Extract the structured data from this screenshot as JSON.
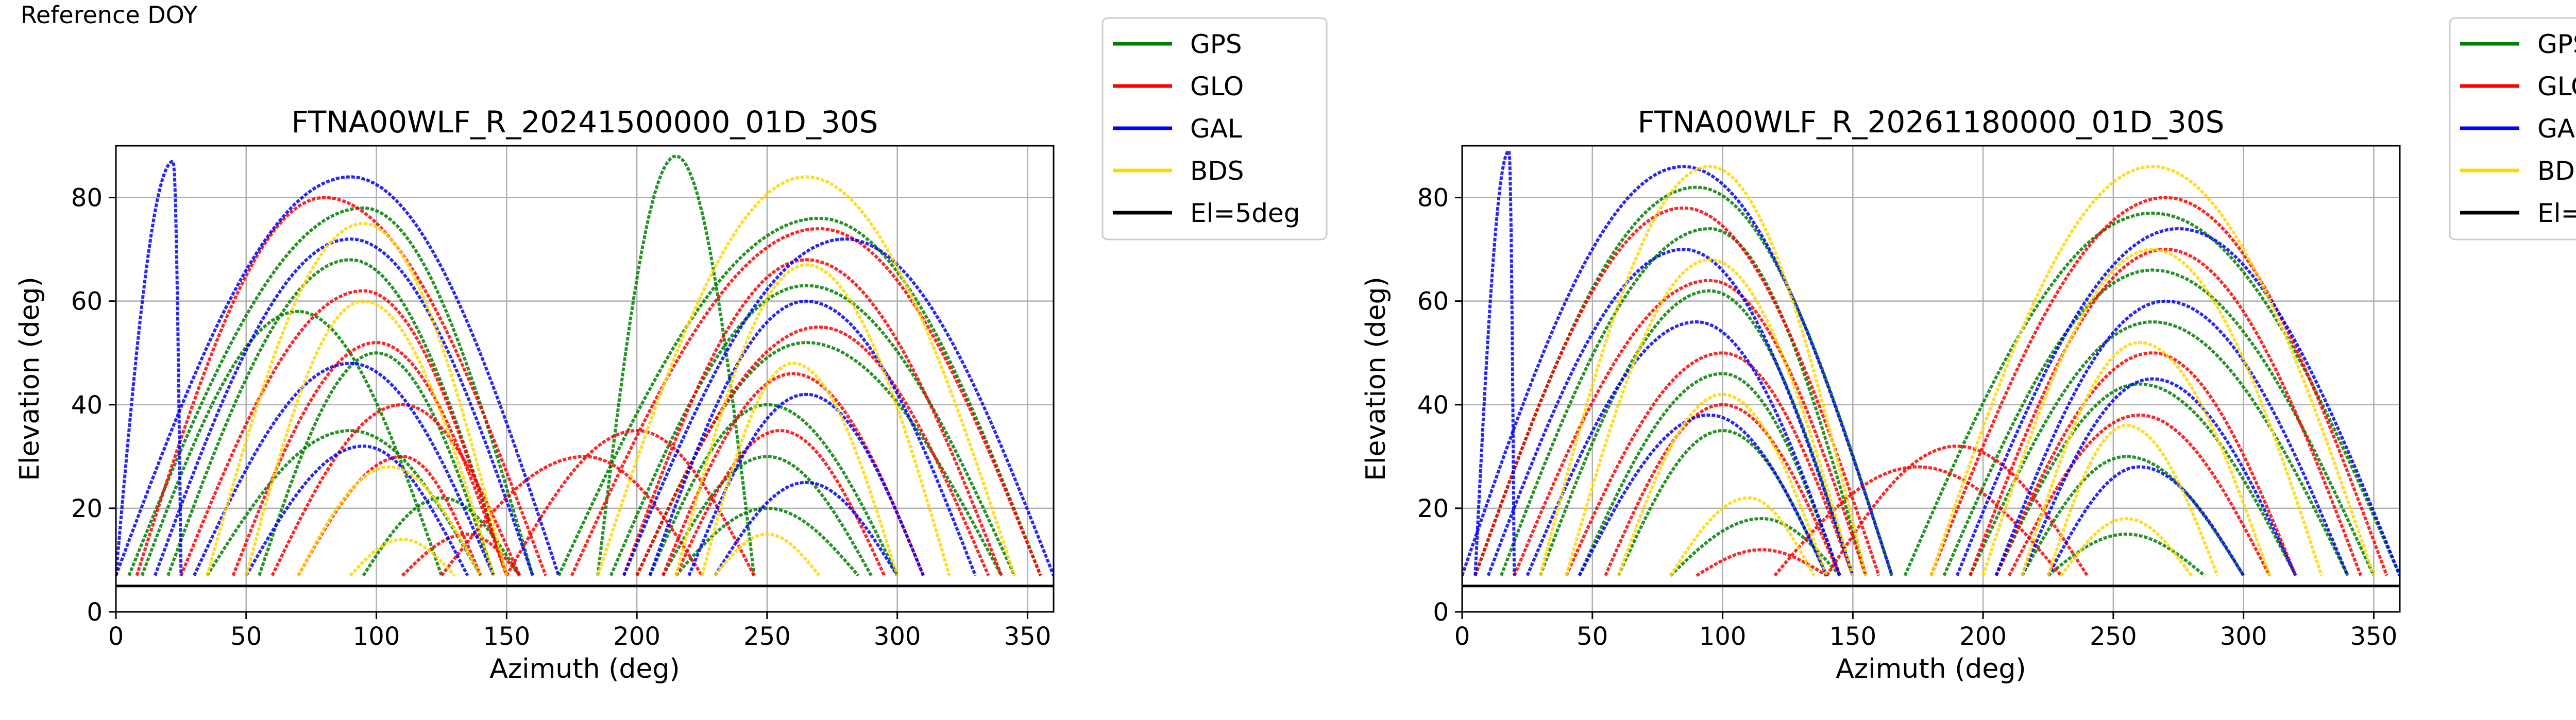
{
  "header": {
    "corner_label": "Reference DOY"
  },
  "legend": [
    {
      "label": "GPS",
      "color": "#008000"
    },
    {
      "label": "GLO",
      "color": "#ff0000"
    },
    {
      "label": "GAL",
      "color": "#0000ff"
    },
    {
      "label": "BDS",
      "color": "#ffd700"
    },
    {
      "label": "El=5deg",
      "color": "#000000"
    }
  ],
  "chart_data": [
    {
      "type": "scatter",
      "title": "FTNA00WLF_R_20241500000_01D_30S",
      "xlabel": "Azimuth (deg)",
      "ylabel": "Elevation (deg)",
      "xlim": [
        0,
        360
      ],
      "ylim": [
        0,
        90
      ],
      "xticks": [
        0,
        50,
        100,
        150,
        200,
        250,
        300,
        350
      ],
      "yticks": [
        0,
        20,
        40,
        60,
        80
      ],
      "grid": true,
      "legend_position": "outside-top-right",
      "reference_line": {
        "label": "El=5deg",
        "y": 5
      },
      "series": [
        {
          "name": "GPS",
          "color": "#008000",
          "tracks": [
            {
              "az0": 5,
              "az1": 160,
              "peak_az": 95,
              "peak_el": 78
            },
            {
              "az0": 20,
              "az1": 150,
              "peak_az": 90,
              "peak_el": 68
            },
            {
              "az0": 55,
              "az1": 145,
              "peak_az": 100,
              "peak_el": 50
            },
            {
              "az0": 10,
              "az1": 125,
              "peak_az": 70,
              "peak_el": 58
            },
            {
              "az0": 35,
              "az1": 140,
              "peak_az": 90,
              "peak_el": 35
            },
            {
              "az0": 95,
              "az1": 155,
              "peak_az": 125,
              "peak_el": 22
            },
            {
              "az0": 170,
              "az1": 355,
              "peak_az": 270,
              "peak_el": 76
            },
            {
              "az0": 190,
              "az1": 345,
              "peak_az": 265,
              "peak_el": 63
            },
            {
              "az0": 200,
              "az1": 340,
              "peak_az": 265,
              "peak_el": 52
            },
            {
              "az0": 205,
              "az1": 300,
              "peak_az": 250,
              "peak_el": 40
            },
            {
              "az0": 210,
              "az1": 290,
              "peak_az": 250,
              "peak_el": 30
            },
            {
              "az0": 215,
              "az1": 285,
              "peak_az": 250,
              "peak_el": 20
            },
            {
              "az0": 185,
              "az1": 245,
              "peak_az": 215,
              "peak_el": 88
            }
          ]
        },
        {
          "name": "GLO",
          "color": "#ff0000",
          "tracks": [
            {
              "az0": 8,
              "az1": 165,
              "peak_az": 80,
              "peak_el": 80
            },
            {
              "az0": 25,
              "az1": 150,
              "peak_az": 95,
              "peak_el": 62
            },
            {
              "az0": 45,
              "az1": 150,
              "peak_az": 100,
              "peak_el": 52
            },
            {
              "az0": 60,
              "az1": 155,
              "peak_az": 110,
              "peak_el": 40
            },
            {
              "az0": 70,
              "az1": 140,
              "peak_az": 110,
              "peak_el": 30
            },
            {
              "az0": 110,
              "az1": 155,
              "peak_az": 135,
              "peak_el": 15
            },
            {
              "az0": 175,
              "az1": 355,
              "peak_az": 270,
              "peak_el": 74
            },
            {
              "az0": 195,
              "az1": 340,
              "peak_az": 265,
              "peak_el": 68
            },
            {
              "az0": 200,
              "az1": 335,
              "peak_az": 270,
              "peak_el": 55
            },
            {
              "az0": 210,
              "az1": 310,
              "peak_az": 260,
              "peak_el": 46
            },
            {
              "az0": 215,
              "az1": 295,
              "peak_az": 255,
              "peak_el": 35
            },
            {
              "az0": 150,
              "az1": 245,
              "peak_az": 200,
              "peak_el": 35
            },
            {
              "az0": 125,
              "az1": 225,
              "peak_az": 180,
              "peak_el": 30
            }
          ]
        },
        {
          "name": "GAL",
          "color": "#0000ff",
          "tracks": [
            {
              "az0": 0,
              "az1": 25,
              "peak_az": 22,
              "peak_el": 87
            },
            {
              "az0": 0,
              "az1": 170,
              "peak_az": 90,
              "peak_el": 84
            },
            {
              "az0": 15,
              "az1": 160,
              "peak_az": 90,
              "peak_el": 72
            },
            {
              "az0": 30,
              "az1": 145,
              "peak_az": 90,
              "peak_el": 48
            },
            {
              "az0": 50,
              "az1": 135,
              "peak_az": 95,
              "peak_el": 32
            },
            {
              "az0": 195,
              "az1": 360,
              "peak_az": 280,
              "peak_el": 72
            },
            {
              "az0": 205,
              "az1": 330,
              "peak_az": 265,
              "peak_el": 60
            },
            {
              "az0": 220,
              "az1": 310,
              "peak_az": 265,
              "peak_el": 42
            },
            {
              "az0": 230,
              "az1": 300,
              "peak_az": 265,
              "peak_el": 25
            }
          ]
        },
        {
          "name": "BDS",
          "color": "#ffd700",
          "tracks": [
            {
              "az0": 35,
              "az1": 150,
              "peak_az": 95,
              "peak_el": 75
            },
            {
              "az0": 50,
              "az1": 145,
              "peak_az": 95,
              "peak_el": 60
            },
            {
              "az0": 70,
              "az1": 140,
              "peak_az": 105,
              "peak_el": 28
            },
            {
              "az0": 90,
              "az1": 130,
              "peak_az": 110,
              "peak_el": 14
            },
            {
              "az0": 185,
              "az1": 345,
              "peak_az": 265,
              "peak_el": 84
            },
            {
              "az0": 215,
              "az1": 320,
              "peak_az": 265,
              "peak_el": 67
            },
            {
              "az0": 225,
              "az1": 300,
              "peak_az": 260,
              "peak_el": 48
            },
            {
              "az0": 230,
              "az1": 270,
              "peak_az": 250,
              "peak_el": 15
            }
          ]
        }
      ]
    },
    {
      "type": "scatter",
      "title": "FTNA00WLF_R_20261180000_01D_30S",
      "xlabel": "Azimuth (deg)",
      "ylabel": "Elevation (deg)",
      "xlim": [
        0,
        360
      ],
      "ylim": [
        0,
        90
      ],
      "xticks": [
        0,
        50,
        100,
        150,
        200,
        250,
        300,
        350
      ],
      "yticks": [
        0,
        20,
        40,
        60,
        80
      ],
      "grid": true,
      "legend_position": "outside-top-right",
      "reference_line": {
        "label": "El=5deg",
        "y": 5
      },
      "series": [
        {
          "name": "GPS",
          "color": "#008000",
          "tracks": [
            {
              "az0": 5,
              "az1": 165,
              "peak_az": 90,
              "peak_el": 82
            },
            {
              "az0": 15,
              "az1": 155,
              "peak_az": 95,
              "peak_el": 74
            },
            {
              "az0": 30,
              "az1": 150,
              "peak_az": 95,
              "peak_el": 62
            },
            {
              "az0": 45,
              "az1": 145,
              "peak_az": 100,
              "peak_el": 46
            },
            {
              "az0": 60,
              "az1": 140,
              "peak_az": 100,
              "peak_el": 35
            },
            {
              "az0": 80,
              "az1": 145,
              "peak_az": 115,
              "peak_el": 18
            },
            {
              "az0": 170,
              "az1": 360,
              "peak_az": 265,
              "peak_el": 77
            },
            {
              "az0": 185,
              "az1": 350,
              "peak_az": 265,
              "peak_el": 66
            },
            {
              "az0": 195,
              "az1": 340,
              "peak_az": 265,
              "peak_el": 56
            },
            {
              "az0": 205,
              "az1": 320,
              "peak_az": 260,
              "peak_el": 44
            },
            {
              "az0": 215,
              "az1": 300,
              "peak_az": 255,
              "peak_el": 30
            },
            {
              "az0": 225,
              "az1": 285,
              "peak_az": 255,
              "peak_el": 15
            }
          ]
        },
        {
          "name": "GLO",
          "color": "#ff0000",
          "tracks": [
            {
              "az0": 5,
              "az1": 160,
              "peak_az": 85,
              "peak_el": 78
            },
            {
              "az0": 20,
              "az1": 155,
              "peak_az": 95,
              "peak_el": 64
            },
            {
              "az0": 40,
              "az1": 150,
              "peak_az": 100,
              "peak_el": 50
            },
            {
              "az0": 55,
              "az1": 145,
              "peak_az": 100,
              "peak_el": 40
            },
            {
              "az0": 90,
              "az1": 140,
              "peak_az": 115,
              "peak_el": 12
            },
            {
              "az0": 180,
              "az1": 355,
              "peak_az": 270,
              "peak_el": 80
            },
            {
              "az0": 195,
              "az1": 345,
              "peak_az": 270,
              "peak_el": 70
            },
            {
              "az0": 205,
              "az1": 320,
              "peak_az": 265,
              "peak_el": 50
            },
            {
              "az0": 210,
              "az1": 310,
              "peak_az": 260,
              "peak_el": 38
            },
            {
              "az0": 140,
              "az1": 240,
              "peak_az": 190,
              "peak_el": 32
            },
            {
              "az0": 120,
              "az1": 230,
              "peak_az": 175,
              "peak_el": 28
            }
          ]
        },
        {
          "name": "GAL",
          "color": "#0000ff",
          "tracks": [
            {
              "az0": 5,
              "az1": 20,
              "peak_az": 18,
              "peak_el": 89
            },
            {
              "az0": 0,
              "az1": 165,
              "peak_az": 85,
              "peak_el": 86
            },
            {
              "az0": 10,
              "az1": 150,
              "peak_az": 85,
              "peak_el": 70
            },
            {
              "az0": 25,
              "az1": 145,
              "peak_az": 90,
              "peak_el": 56
            },
            {
              "az0": 45,
              "az1": 140,
              "peak_az": 95,
              "peak_el": 38
            },
            {
              "az0": 190,
              "az1": 360,
              "peak_az": 275,
              "peak_el": 74
            },
            {
              "az0": 205,
              "az1": 340,
              "peak_az": 270,
              "peak_el": 60
            },
            {
              "az0": 215,
              "az1": 320,
              "peak_az": 265,
              "peak_el": 45
            },
            {
              "az0": 225,
              "az1": 300,
              "peak_az": 260,
              "peak_el": 28
            }
          ]
        },
        {
          "name": "BDS",
          "color": "#ffd700",
          "tracks": [
            {
              "az0": 30,
              "az1": 155,
              "peak_az": 95,
              "peak_el": 86
            },
            {
              "az0": 40,
              "az1": 150,
              "peak_az": 95,
              "peak_el": 68
            },
            {
              "az0": 60,
              "az1": 140,
              "peak_az": 100,
              "peak_el": 42
            },
            {
              "az0": 80,
              "az1": 135,
              "peak_az": 110,
              "peak_el": 22
            },
            {
              "az0": 180,
              "az1": 350,
              "peak_az": 265,
              "peak_el": 86
            },
            {
              "az0": 200,
              "az1": 330,
              "peak_az": 265,
              "peak_el": 70
            },
            {
              "az0": 215,
              "az1": 310,
              "peak_az": 260,
              "peak_el": 52
            },
            {
              "az0": 225,
              "az1": 290,
              "peak_az": 255,
              "peak_el": 36
            },
            {
              "az0": 230,
              "az1": 280,
              "peak_az": 255,
              "peak_el": 18
            }
          ]
        }
      ]
    }
  ]
}
